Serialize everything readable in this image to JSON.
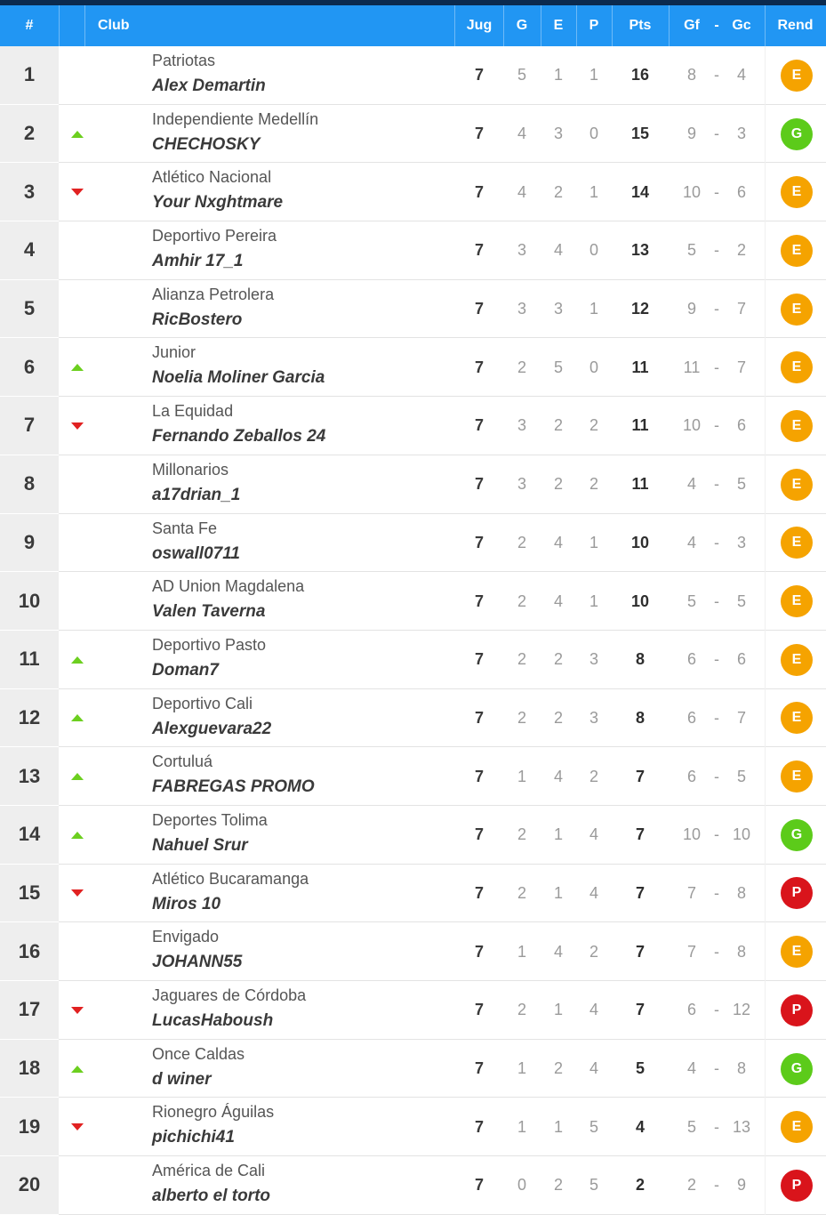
{
  "header": {
    "rank": "#",
    "club": "Club",
    "jug": "Jug",
    "g": "G",
    "e": "E",
    "p": "P",
    "pts": "Pts",
    "gf": "Gf",
    "dash": "-",
    "gc": "Gc",
    "rend": "Rend"
  },
  "colors": {
    "header_bg": "#2196f3",
    "top_strip": "#0b2a4f",
    "trend_up": "#6ccf1f",
    "trend_down": "#e12121",
    "badge_E": "#f5a300",
    "badge_G": "#5ccb1a",
    "badge_P": "#d9141b"
  },
  "icons": {
    "up": "triangle-up-icon",
    "down": "triangle-down-icon"
  },
  "standings": [
    {
      "rank": "1",
      "trend": "none",
      "club": "Patriotas",
      "player": "Alex Demartin",
      "jug": "7",
      "g": "5",
      "e": "1",
      "p": "1",
      "pts": "16",
      "gf": "8",
      "gc": "4",
      "rend": "E"
    },
    {
      "rank": "2",
      "trend": "up",
      "club": "Independiente Medellín",
      "player": "CHECHOSKY",
      "jug": "7",
      "g": "4",
      "e": "3",
      "p": "0",
      "pts": "15",
      "gf": "9",
      "gc": "3",
      "rend": "G"
    },
    {
      "rank": "3",
      "trend": "down",
      "club": "Atlético Nacional",
      "player": "Your Nxghtmare",
      "jug": "7",
      "g": "4",
      "e": "2",
      "p": "1",
      "pts": "14",
      "gf": "10",
      "gc": "6",
      "rend": "E"
    },
    {
      "rank": "4",
      "trend": "none",
      "club": "Deportivo Pereira",
      "player": "Amhir 17_1",
      "jug": "7",
      "g": "3",
      "e": "4",
      "p": "0",
      "pts": "13",
      "gf": "5",
      "gc": "2",
      "rend": "E"
    },
    {
      "rank": "5",
      "trend": "none",
      "club": "Alianza Petrolera",
      "player": "RicBostero",
      "jug": "7",
      "g": "3",
      "e": "3",
      "p": "1",
      "pts": "12",
      "gf": "9",
      "gc": "7",
      "rend": "E"
    },
    {
      "rank": "6",
      "trend": "up",
      "club": "Junior",
      "player": "Noelia Moliner Garcia",
      "jug": "7",
      "g": "2",
      "e": "5",
      "p": "0",
      "pts": "11",
      "gf": "11",
      "gc": "7",
      "rend": "E"
    },
    {
      "rank": "7",
      "trend": "down",
      "club": "La Equidad",
      "player": "Fernando Zeballos 24",
      "jug": "7",
      "g": "3",
      "e": "2",
      "p": "2",
      "pts": "11",
      "gf": "10",
      "gc": "6",
      "rend": "E"
    },
    {
      "rank": "8",
      "trend": "none",
      "club": "Millonarios",
      "player": "a17drian_1",
      "jug": "7",
      "g": "3",
      "e": "2",
      "p": "2",
      "pts": "11",
      "gf": "4",
      "gc": "5",
      "rend": "E"
    },
    {
      "rank": "9",
      "trend": "none",
      "club": "Santa Fe",
      "player": "oswall0711",
      "jug": "7",
      "g": "2",
      "e": "4",
      "p": "1",
      "pts": "10",
      "gf": "4",
      "gc": "3",
      "rend": "E"
    },
    {
      "rank": "10",
      "trend": "none",
      "club": "AD Union Magdalena",
      "player": "Valen Taverna",
      "jug": "7",
      "g": "2",
      "e": "4",
      "p": "1",
      "pts": "10",
      "gf": "5",
      "gc": "5",
      "rend": "E"
    },
    {
      "rank": "11",
      "trend": "up",
      "club": "Deportivo Pasto",
      "player": "Doman7",
      "jug": "7",
      "g": "2",
      "e": "2",
      "p": "3",
      "pts": "8",
      "gf": "6",
      "gc": "6",
      "rend": "E"
    },
    {
      "rank": "12",
      "trend": "up",
      "club": "Deportivo Cali",
      "player": "Alexguevara22",
      "jug": "7",
      "g": "2",
      "e": "2",
      "p": "3",
      "pts": "8",
      "gf": "6",
      "gc": "7",
      "rend": "E"
    },
    {
      "rank": "13",
      "trend": "up",
      "club": "Cortuluá",
      "player": "FABREGAS PROMO",
      "jug": "7",
      "g": "1",
      "e": "4",
      "p": "2",
      "pts": "7",
      "gf": "6",
      "gc": "5",
      "rend": "E"
    },
    {
      "rank": "14",
      "trend": "up",
      "club": "Deportes Tolima",
      "player": "Nahuel Srur",
      "jug": "7",
      "g": "2",
      "e": "1",
      "p": "4",
      "pts": "7",
      "gf": "10",
      "gc": "10",
      "rend": "G"
    },
    {
      "rank": "15",
      "trend": "down",
      "club": "Atlético Bucaramanga",
      "player": "Miros 10",
      "jug": "7",
      "g": "2",
      "e": "1",
      "p": "4",
      "pts": "7",
      "gf": "7",
      "gc": "8",
      "rend": "P"
    },
    {
      "rank": "16",
      "trend": "none",
      "club": "Envigado",
      "player": "JOHANN55",
      "jug": "7",
      "g": "1",
      "e": "4",
      "p": "2",
      "pts": "7",
      "gf": "7",
      "gc": "8",
      "rend": "E"
    },
    {
      "rank": "17",
      "trend": "down",
      "club": "Jaguares de Córdoba",
      "player": "LucasHaboush",
      "jug": "7",
      "g": "2",
      "e": "1",
      "p": "4",
      "pts": "7",
      "gf": "6",
      "gc": "12",
      "rend": "P"
    },
    {
      "rank": "18",
      "trend": "up",
      "club": "Once Caldas",
      "player": "d winer",
      "jug": "7",
      "g": "1",
      "e": "2",
      "p": "4",
      "pts": "5",
      "gf": "4",
      "gc": "8",
      "rend": "G"
    },
    {
      "rank": "19",
      "trend": "down",
      "club": "Rionegro Águilas",
      "player": "pichichi41",
      "jug": "7",
      "g": "1",
      "e": "1",
      "p": "5",
      "pts": "4",
      "gf": "5",
      "gc": "13",
      "rend": "E"
    },
    {
      "rank": "20",
      "trend": "none",
      "club": "América de Cali",
      "player": "alberto el torto",
      "jug": "7",
      "g": "0",
      "e": "2",
      "p": "5",
      "pts": "2",
      "gf": "2",
      "gc": "9",
      "rend": "P"
    }
  ]
}
